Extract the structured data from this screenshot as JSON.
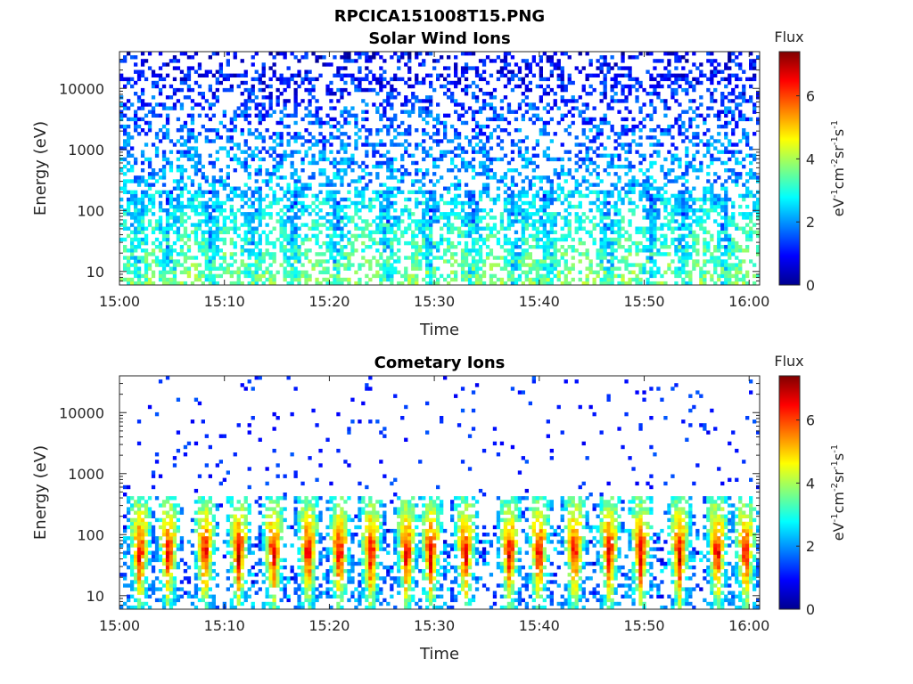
{
  "figure_title": "RPCICA151008T15.PNG",
  "chart_data": [
    {
      "type": "heatmap",
      "title": "Solar Wind Ions",
      "xlabel": "Time",
      "ylabel": "Energy (eV)",
      "x_ticks": [
        "15:00",
        "15:10",
        "15:20",
        "15:30",
        "15:40",
        "15:50",
        "16:00"
      ],
      "x_range": [
        "15:00",
        "16:01"
      ],
      "y_scale": "log",
      "y_ticks": [
        "10",
        "100",
        "1000",
        "10000"
      ],
      "y_range": [
        6,
        40000
      ],
      "colorbar": {
        "label": "Flux",
        "unit": "eV-1cm-2sr-1s-1",
        "ticks": [
          "0",
          "2",
          "4",
          "6"
        ],
        "range": [
          0,
          7.4
        ],
        "colormap": "jet"
      },
      "features": {
        "high_energy_scatter_flux": 1.8,
        "low_energy_flux": 3.6,
        "burst_times_min": [
          1.5,
          4.5,
          8.5,
          12.5,
          16.5,
          20.5,
          25.5,
          29.5,
          33.5,
          37.5,
          40.5,
          46.5,
          50.5,
          53.5,
          57.5
        ]
      }
    },
    {
      "type": "heatmap",
      "title": "Cometary Ions",
      "xlabel": "Time",
      "ylabel": "Energy (eV)",
      "x_ticks": [
        "15:00",
        "15:10",
        "15:20",
        "15:30",
        "15:40",
        "15:50",
        "16:00"
      ],
      "x_range": [
        "15:00",
        "16:01"
      ],
      "y_scale": "log",
      "y_ticks": [
        "10",
        "100",
        "1000",
        "10000"
      ],
      "y_range": [
        6,
        40000
      ],
      "colorbar": {
        "label": "Flux",
        "unit": "eV-1cm-2sr-1s-1",
        "ticks": [
          "0",
          "2",
          "4",
          "6"
        ],
        "range": [
          0,
          7.4
        ],
        "colormap": "jet"
      },
      "features": {
        "burst_times_min": [
          1.8,
          4.5,
          8.0,
          11.2,
          14.5,
          17.8,
          20.8,
          23.8,
          27.2,
          29.5,
          32.8,
          37.0,
          39.8,
          43.2,
          46.5,
          49.5,
          53.2,
          56.8,
          59.5
        ],
        "burst_peak_flux": 5.5,
        "background_scatter_flux": 0.8
      }
    }
  ]
}
